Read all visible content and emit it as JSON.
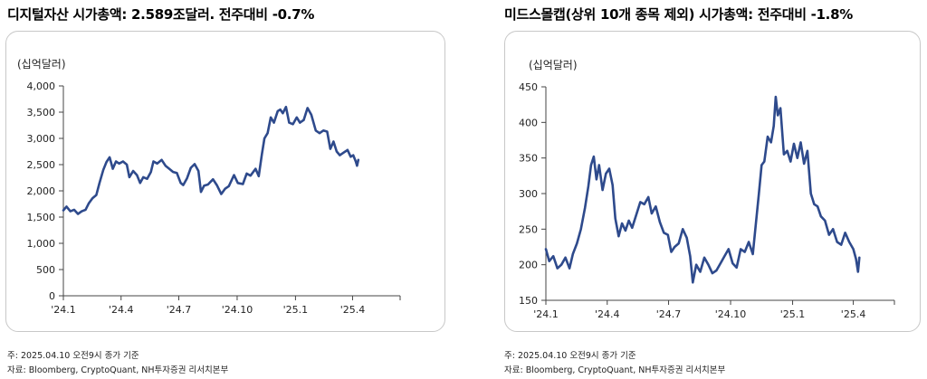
{
  "charts": [
    {
      "title": "디지털자산 시가총액: 2.589조달러. 전주대비 -0.7%",
      "note": "주: 2025.04.10 오전9시 종가 기준",
      "source": "자료: Bloomberg, CryptoQuant, NH투자증권 리서치본부"
    },
    {
      "title": "미드스몰캡(상위 10개 종목 제외) 시가총액: 전주대비 -1.8%",
      "note": "주: 2025.04.10 오전9시 종가 기준",
      "source": "자료: Bloomberg, CryptoQuant, NH투자증권 리서치본부"
    }
  ],
  "chart_data": [
    {
      "type": "line",
      "unit_label": "(십억달러)",
      "ylim": [
        0,
        4000
      ],
      "yticks": [
        0,
        500,
        1000,
        1500,
        2000,
        2500,
        3000,
        3500,
        4000
      ],
      "ytick_labels": [
        "0",
        "500",
        "1,000",
        "1,500",
        "2,000",
        "2,500",
        "3,000",
        "3,500",
        "4,000"
      ],
      "xlim": [
        "2024-01-01",
        "2025-06-15"
      ],
      "xticks": [
        "2024-01-01",
        "2024-04-01",
        "2024-07-01",
        "2024-10-01",
        "2025-01-01",
        "2025-04-01"
      ],
      "xtick_labels": [
        "'24.1",
        "'24.4",
        "'24.7",
        "'24.10",
        "'25.1",
        "'25.4"
      ],
      "color": "#2e4a8c",
      "points": [
        [
          "2024-01-01",
          1630
        ],
        [
          "2024-01-06",
          1700
        ],
        [
          "2024-01-12",
          1610
        ],
        [
          "2024-01-18",
          1640
        ],
        [
          "2024-01-24",
          1560
        ],
        [
          "2024-01-30",
          1610
        ],
        [
          "2024-02-05",
          1640
        ],
        [
          "2024-02-10",
          1760
        ],
        [
          "2024-02-16",
          1860
        ],
        [
          "2024-02-22",
          1920
        ],
        [
          "2024-02-27",
          2150
        ],
        [
          "2024-03-04",
          2400
        ],
        [
          "2024-03-09",
          2550
        ],
        [
          "2024-03-14",
          2640
        ],
        [
          "2024-03-19",
          2420
        ],
        [
          "2024-03-24",
          2560
        ],
        [
          "2024-03-29",
          2520
        ],
        [
          "2024-04-04",
          2560
        ],
        [
          "2024-04-10",
          2500
        ],
        [
          "2024-04-14",
          2260
        ],
        [
          "2024-04-20",
          2380
        ],
        [
          "2024-04-26",
          2300
        ],
        [
          "2024-05-01",
          2150
        ],
        [
          "2024-05-06",
          2260
        ],
        [
          "2024-05-12",
          2230
        ],
        [
          "2024-05-18",
          2360
        ],
        [
          "2024-05-22",
          2560
        ],
        [
          "2024-05-28",
          2520
        ],
        [
          "2024-06-04",
          2590
        ],
        [
          "2024-06-10",
          2480
        ],
        [
          "2024-06-16",
          2420
        ],
        [
          "2024-06-22",
          2360
        ],
        [
          "2024-06-28",
          2340
        ],
        [
          "2024-07-04",
          2150
        ],
        [
          "2024-07-08",
          2110
        ],
        [
          "2024-07-14",
          2240
        ],
        [
          "2024-07-20",
          2440
        ],
        [
          "2024-07-26",
          2510
        ],
        [
          "2024-08-01",
          2380
        ],
        [
          "2024-08-05",
          1980
        ],
        [
          "2024-08-10",
          2100
        ],
        [
          "2024-08-16",
          2120
        ],
        [
          "2024-08-24",
          2220
        ],
        [
          "2024-08-30",
          2110
        ],
        [
          "2024-09-06",
          1940
        ],
        [
          "2024-09-12",
          2040
        ],
        [
          "2024-09-18",
          2090
        ],
        [
          "2024-09-26",
          2300
        ],
        [
          "2024-10-02",
          2150
        ],
        [
          "2024-10-10",
          2130
        ],
        [
          "2024-10-16",
          2330
        ],
        [
          "2024-10-22",
          2290
        ],
        [
          "2024-10-30",
          2420
        ],
        [
          "2024-11-04",
          2280
        ],
        [
          "2024-11-09",
          2700
        ],
        [
          "2024-11-13",
          3000
        ],
        [
          "2024-11-18",
          3100
        ],
        [
          "2024-11-23",
          3400
        ],
        [
          "2024-11-28",
          3300
        ],
        [
          "2024-12-04",
          3520
        ],
        [
          "2024-12-08",
          3550
        ],
        [
          "2024-12-12",
          3480
        ],
        [
          "2024-12-17",
          3600
        ],
        [
          "2024-12-22",
          3300
        ],
        [
          "2024-12-28",
          3270
        ],
        [
          "2025-01-03",
          3400
        ],
        [
          "2025-01-08",
          3300
        ],
        [
          "2025-01-14",
          3350
        ],
        [
          "2025-01-20",
          3580
        ],
        [
          "2025-01-26",
          3450
        ],
        [
          "2025-02-02",
          3150
        ],
        [
          "2025-02-08",
          3100
        ],
        [
          "2025-02-14",
          3150
        ],
        [
          "2025-02-20",
          3130
        ],
        [
          "2025-02-25",
          2800
        ],
        [
          "2025-03-02",
          2940
        ],
        [
          "2025-03-07",
          2750
        ],
        [
          "2025-03-12",
          2680
        ],
        [
          "2025-03-18",
          2730
        ],
        [
          "2025-03-24",
          2780
        ],
        [
          "2025-03-29",
          2650
        ],
        [
          "2025-04-02",
          2680
        ],
        [
          "2025-04-06",
          2560
        ],
        [
          "2025-04-08",
          2480
        ],
        [
          "2025-04-10",
          2589
        ]
      ]
    },
    {
      "type": "line",
      "unit_label": "(십억달러)",
      "ylim": [
        150,
        450
      ],
      "yticks": [
        150,
        200,
        250,
        300,
        350,
        400,
        450
      ],
      "ytick_labels": [
        "150",
        "200",
        "250",
        "300",
        "350",
        "400",
        "450"
      ],
      "xlim": [
        "2024-01-01",
        "2025-06-01"
      ],
      "xticks": [
        "2024-01-01",
        "2024-04-01",
        "2024-07-01",
        "2024-10-01",
        "2025-01-01",
        "2025-04-01"
      ],
      "xtick_labels": [
        "'24.1",
        "'24.4",
        "'24.7",
        "'24.10",
        "'25.1",
        "'25.4"
      ],
      "color": "#2e4a8c",
      "points": [
        [
          "2024-01-01",
          222
        ],
        [
          "2024-01-06",
          205
        ],
        [
          "2024-01-12",
          212
        ],
        [
          "2024-01-18",
          195
        ],
        [
          "2024-01-24",
          200
        ],
        [
          "2024-01-30",
          210
        ],
        [
          "2024-02-05",
          195
        ],
        [
          "2024-02-10",
          215
        ],
        [
          "2024-02-16",
          230
        ],
        [
          "2024-02-22",
          250
        ],
        [
          "2024-02-28",
          280
        ],
        [
          "2024-03-04",
          310
        ],
        [
          "2024-03-08",
          340
        ],
        [
          "2024-03-12",
          352
        ],
        [
          "2024-03-16",
          320
        ],
        [
          "2024-03-20",
          340
        ],
        [
          "2024-03-25",
          305
        ],
        [
          "2024-03-30",
          328
        ],
        [
          "2024-04-04",
          335
        ],
        [
          "2024-04-09",
          312
        ],
        [
          "2024-04-13",
          265
        ],
        [
          "2024-04-18",
          240
        ],
        [
          "2024-04-23",
          258
        ],
        [
          "2024-04-28",
          248
        ],
        [
          "2024-05-03",
          262
        ],
        [
          "2024-05-08",
          252
        ],
        [
          "2024-05-14",
          270
        ],
        [
          "2024-05-20",
          288
        ],
        [
          "2024-05-26",
          285
        ],
        [
          "2024-06-01",
          295
        ],
        [
          "2024-06-06",
          272
        ],
        [
          "2024-06-12",
          282
        ],
        [
          "2024-06-18",
          260
        ],
        [
          "2024-06-24",
          245
        ],
        [
          "2024-06-30",
          242
        ],
        [
          "2024-07-05",
          218
        ],
        [
          "2024-07-10",
          225
        ],
        [
          "2024-07-16",
          230
        ],
        [
          "2024-07-22",
          250
        ],
        [
          "2024-07-28",
          238
        ],
        [
          "2024-08-02",
          212
        ],
        [
          "2024-08-06",
          175
        ],
        [
          "2024-08-11",
          200
        ],
        [
          "2024-08-17",
          190
        ],
        [
          "2024-08-23",
          210
        ],
        [
          "2024-08-29",
          200
        ],
        [
          "2024-09-04",
          188
        ],
        [
          "2024-09-10",
          192
        ],
        [
          "2024-09-16",
          202
        ],
        [
          "2024-09-22",
          212
        ],
        [
          "2024-09-28",
          222
        ],
        [
          "2024-10-04",
          202
        ],
        [
          "2024-10-10",
          196
        ],
        [
          "2024-10-16",
          222
        ],
        [
          "2024-10-22",
          218
        ],
        [
          "2024-10-28",
          232
        ],
        [
          "2024-11-03",
          215
        ],
        [
          "2024-11-08",
          262
        ],
        [
          "2024-11-12",
          300
        ],
        [
          "2024-11-16",
          340
        ],
        [
          "2024-11-20",
          345
        ],
        [
          "2024-11-25",
          380
        ],
        [
          "2024-11-30",
          372
        ],
        [
          "2024-12-04",
          395
        ],
        [
          "2024-12-07",
          436
        ],
        [
          "2024-12-10",
          410
        ],
        [
          "2024-12-14",
          420
        ],
        [
          "2024-12-19",
          355
        ],
        [
          "2024-12-24",
          360
        ],
        [
          "2024-12-29",
          345
        ],
        [
          "2025-01-03",
          370
        ],
        [
          "2025-01-08",
          350
        ],
        [
          "2025-01-13",
          372
        ],
        [
          "2025-01-18",
          342
        ],
        [
          "2025-01-23",
          360
        ],
        [
          "2025-01-28",
          300
        ],
        [
          "2025-02-02",
          285
        ],
        [
          "2025-02-07",
          282
        ],
        [
          "2025-02-12",
          268
        ],
        [
          "2025-02-18",
          262
        ],
        [
          "2025-02-24",
          242
        ],
        [
          "2025-03-02",
          250
        ],
        [
          "2025-03-08",
          232
        ],
        [
          "2025-03-14",
          228
        ],
        [
          "2025-03-20",
          245
        ],
        [
          "2025-03-26",
          232
        ],
        [
          "2025-04-01",
          222
        ],
        [
          "2025-04-05",
          208
        ],
        [
          "2025-04-08",
          190
        ],
        [
          "2025-04-10",
          210
        ]
      ]
    }
  ]
}
